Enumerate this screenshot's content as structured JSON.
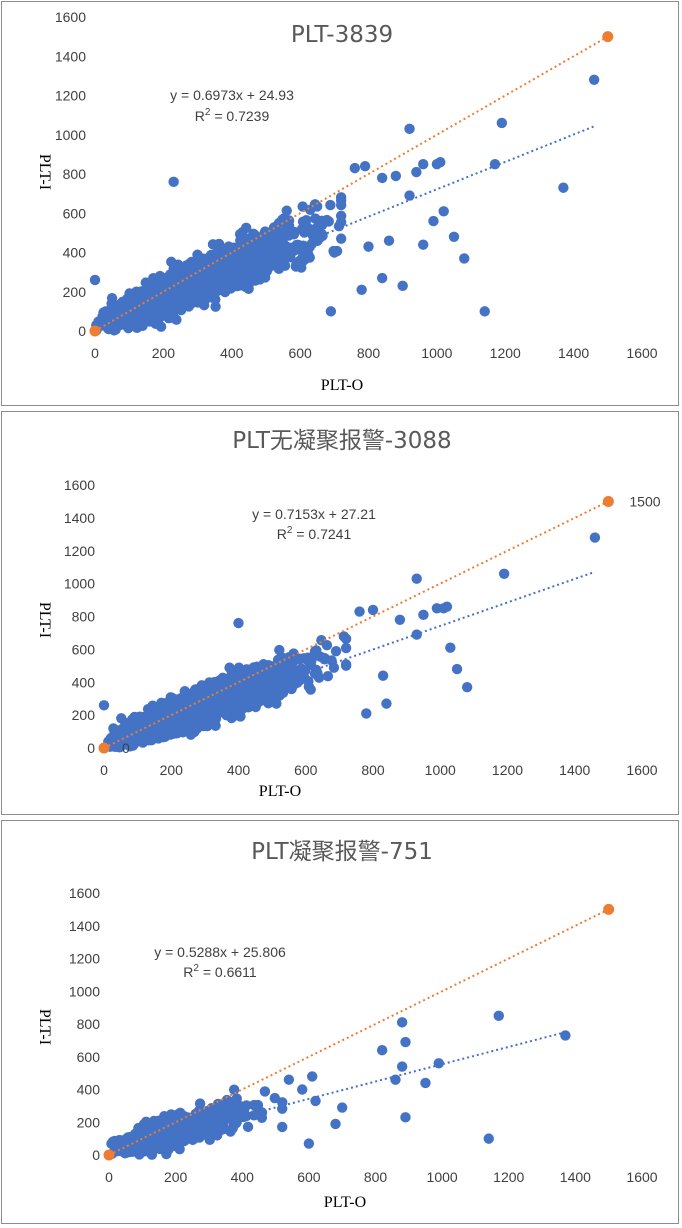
{
  "colors": {
    "points": "#4472C4",
    "trend": "#4472C4",
    "reference": "#ED7D31",
    "frame": "#8c8c8c"
  },
  "chart_data": [
    {
      "type": "scatter",
      "title": "PLT-3839",
      "xlabel": "PLT-O",
      "ylabel": "PLT-I",
      "xlim": [
        0,
        1600
      ],
      "ylim": [
        0,
        1600
      ],
      "xticks": [
        "0",
        "200",
        "400",
        "600",
        "800",
        "1000",
        "1200",
        "1400",
        "1600"
      ],
      "yticks": [
        "0",
        "200",
        "400",
        "600",
        "800",
        "1000",
        "1200",
        "1400",
        "1600"
      ],
      "grid": false,
      "equation": "y = 0.6973x + 24.93",
      "r2_prefix": "R",
      "r2_sup": "2",
      "r2_value": " = 0.7239",
      "trendline": {
        "slope": 0.6973,
        "intercept": 24.93,
        "x_range": [
          0,
          1460
        ]
      },
      "reference_line": {
        "from": [
          0,
          0
        ],
        "to": [
          1500,
          1500
        ],
        "endpoint_label": ""
      },
      "series": [
        {
          "kind": "points",
          "n": 3839,
          "outliers": [
            [
              0,
              260
            ],
            [
              230,
              760
            ],
            [
              920,
              1030
            ],
            [
              1190,
              1060
            ],
            [
              1460,
              1280
            ],
            [
              1170,
              850
            ],
            [
              1370,
              730
            ],
            [
              1140,
              100
            ],
            [
              1080,
              370
            ],
            [
              1050,
              480
            ],
            [
              1020,
              610
            ],
            [
              990,
              560
            ],
            [
              960,
              440
            ],
            [
              860,
              460
            ],
            [
              840,
              270
            ],
            [
              800,
              430
            ],
            [
              780,
              210
            ],
            [
              900,
              230
            ],
            [
              880,
              790
            ],
            [
              940,
              810
            ],
            [
              960,
              850
            ],
            [
              1000,
              850
            ],
            [
              1010,
              860
            ],
            [
              760,
              830
            ],
            [
              790,
              840
            ],
            [
              920,
              690
            ],
            [
              840,
              780
            ],
            [
              700,
              400
            ],
            [
              690,
              100
            ]
          ]
        }
      ]
    },
    {
      "type": "scatter",
      "title": "PLT无凝聚报警-3088",
      "xlabel": "PLT-O",
      "ylabel": "PLT-I",
      "xlim": [
        0,
        1600
      ],
      "ylim": [
        0,
        1600
      ],
      "xticks": [
        "0",
        "200",
        "400",
        "600",
        "800",
        "1000",
        "1200",
        "1400",
        "1600"
      ],
      "yticks": [
        "0",
        "200",
        "400",
        "600",
        "800",
        "1000",
        "1200",
        "1400",
        "1600"
      ],
      "grid": false,
      "equation": "y = 0.7153x + 27.21",
      "r2_prefix": "R",
      "r2_sup": "2",
      "r2_value": " = 0.7241",
      "trendline": {
        "slope": 0.7153,
        "intercept": 27.21,
        "x_range": [
          0,
          1460
        ]
      },
      "reference_line": {
        "from": [
          0,
          0
        ],
        "to": [
          1500,
          1500
        ],
        "endpoint_label": "1500",
        "origin_label": "0"
      },
      "series": [
        {
          "kind": "points",
          "n": 3088,
          "outliers": [
            [
              0,
              260
            ],
            [
              400,
              760
            ],
            [
              930,
              1030
            ],
            [
              1190,
              1060
            ],
            [
              1460,
              1280
            ],
            [
              1030,
              610
            ],
            [
              1050,
              480
            ],
            [
              1080,
              370
            ],
            [
              930,
              690
            ],
            [
              840,
              270
            ],
            [
              780,
              210
            ],
            [
              760,
              830
            ],
            [
              800,
              840
            ],
            [
              950,
              810
            ],
            [
              990,
              850
            ],
            [
              1010,
              850
            ],
            [
              1020,
              860
            ],
            [
              830,
              440
            ],
            [
              880,
              780
            ]
          ]
        }
      ]
    },
    {
      "type": "scatter",
      "title": "PLT凝聚报警-751",
      "xlabel": "PLT-O",
      "ylabel": "PLT-I",
      "xlim": [
        0,
        1600
      ],
      "ylim": [
        0,
        1600
      ],
      "xticks": [
        "0",
        "200",
        "400",
        "600",
        "800",
        "1000",
        "1200",
        "1400",
        "1600"
      ],
      "yticks": [
        "0",
        "200",
        "400",
        "600",
        "800",
        "1000",
        "1200",
        "1400",
        "1600"
      ],
      "grid": false,
      "equation": "y = 0.5288x + 25.806",
      "r2_prefix": "R",
      "r2_sup": "2",
      "r2_value": " = 0.6611",
      "trendline": {
        "slope": 0.5288,
        "intercept": 25.806,
        "x_range": [
          0,
          1370
        ]
      },
      "reference_line": {
        "from": [
          0,
          0
        ],
        "to": [
          1500,
          1500
        ],
        "endpoint_label": ""
      },
      "series": [
        {
          "kind": "points",
          "n": 751,
          "outliers": [
            [
              1370,
              730
            ],
            [
              1170,
              850
            ],
            [
              1140,
              100
            ],
            [
              880,
              810
            ],
            [
              890,
              690
            ],
            [
              820,
              640
            ],
            [
              860,
              460
            ],
            [
              880,
              540
            ],
            [
              950,
              440
            ],
            [
              990,
              560
            ],
            [
              890,
              230
            ],
            [
              700,
              290
            ],
            [
              680,
              190
            ],
            [
              620,
              330
            ],
            [
              600,
              70
            ],
            [
              580,
              400
            ],
            [
              610,
              480
            ],
            [
              540,
              460
            ]
          ]
        }
      ]
    }
  ]
}
